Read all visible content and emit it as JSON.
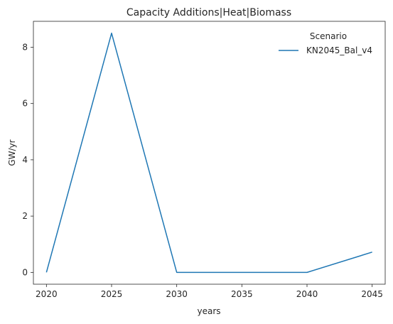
{
  "chart_data": {
    "type": "line",
    "title": "Capacity Additions|Heat|Biomass",
    "xlabel": "years",
    "ylabel": "GW/yr",
    "x": [
      2020,
      2025,
      2030,
      2035,
      2040,
      2045
    ],
    "xlim": [
      2019,
      2046
    ],
    "ylim": [
      -0.42,
      8.92
    ],
    "xticks": [
      2020,
      2025,
      2030,
      2035,
      2040,
      2045
    ],
    "yticks": [
      0,
      2,
      4,
      6,
      8
    ],
    "grid": false,
    "legend": {
      "title": "Scenario",
      "placement": "top-right"
    },
    "series": [
      {
        "name": "KN2045_Bal_v4",
        "color": "#1f77b4",
        "x": [
          2020,
          2025,
          2030,
          2040,
          2045
        ],
        "values": [
          0,
          8.5,
          0,
          0,
          0.72
        ]
      }
    ]
  }
}
